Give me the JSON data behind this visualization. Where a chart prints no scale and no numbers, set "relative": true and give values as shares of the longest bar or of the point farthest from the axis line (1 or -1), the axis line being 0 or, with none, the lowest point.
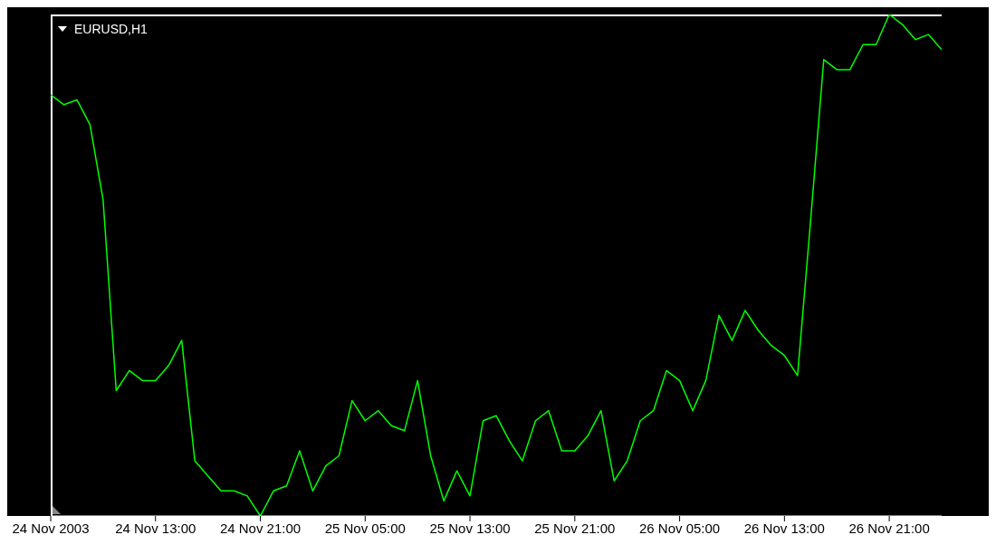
{
  "chart_data": {
    "type": "line",
    "title": "EURUSD,H1",
    "relative": true,
    "color": "#00ff00",
    "marker": "none",
    "line_style": "solid",
    "xlim": [
      "2003-11-24T05:00",
      "2003-11-27T01:00"
    ],
    "xticks": [
      {
        "value": "2003-11-24T05:00",
        "label": "24 Nov 2003"
      },
      {
        "value": "2003-11-24T13:00",
        "label": "24 Nov 13:00"
      },
      {
        "value": "2003-11-24T21:00",
        "label": "24 Nov 21:00"
      },
      {
        "value": "2003-11-25T05:00",
        "label": "25 Nov 05:00"
      },
      {
        "value": "2003-11-25T13:00",
        "label": "25 Nov 13:00"
      },
      {
        "value": "2003-11-25T21:00",
        "label": "25 Nov 21:00"
      },
      {
        "value": "2003-11-26T05:00",
        "label": "26 Nov 05:00"
      },
      {
        "value": "2003-11-26T13:00",
        "label": "26 Nov 13:00"
      },
      {
        "value": "2003-11-26T21:00",
        "label": "26 Nov 21:00"
      }
    ],
    "x": [
      "2003-11-24T05:00",
      "2003-11-24T06:00",
      "2003-11-24T07:00",
      "2003-11-24T08:00",
      "2003-11-24T09:00",
      "2003-11-24T10:00",
      "2003-11-24T11:00",
      "2003-11-24T12:00",
      "2003-11-24T13:00",
      "2003-11-24T14:00",
      "2003-11-24T15:00",
      "2003-11-24T16:00",
      "2003-11-24T17:00",
      "2003-11-24T18:00",
      "2003-11-24T19:00",
      "2003-11-24T20:00",
      "2003-11-24T21:00",
      "2003-11-24T22:00",
      "2003-11-24T23:00",
      "2003-11-25T00:00",
      "2003-11-25T01:00",
      "2003-11-25T02:00",
      "2003-11-25T03:00",
      "2003-11-25T04:00",
      "2003-11-25T05:00",
      "2003-11-25T06:00",
      "2003-11-25T07:00",
      "2003-11-25T08:00",
      "2003-11-25T09:00",
      "2003-11-25T10:00",
      "2003-11-25T11:00",
      "2003-11-25T12:00",
      "2003-11-25T13:00",
      "2003-11-25T14:00",
      "2003-11-25T15:00",
      "2003-11-25T16:00",
      "2003-11-25T17:00",
      "2003-11-25T18:00",
      "2003-11-25T19:00",
      "2003-11-25T20:00",
      "2003-11-25T21:00",
      "2003-11-25T22:00",
      "2003-11-25T23:00",
      "2003-11-26T00:00",
      "2003-11-26T01:00",
      "2003-11-26T02:00",
      "2003-11-26T03:00",
      "2003-11-26T04:00",
      "2003-11-26T05:00",
      "2003-11-26T06:00",
      "2003-11-26T07:00",
      "2003-11-26T08:00",
      "2003-11-26T09:00",
      "2003-11-26T10:00",
      "2003-11-26T11:00",
      "2003-11-26T12:00",
      "2003-11-26T13:00",
      "2003-11-26T14:00",
      "2003-11-26T15:00",
      "2003-11-26T16:00",
      "2003-11-26T17:00",
      "2003-11-26T18:00",
      "2003-11-26T19:00",
      "2003-11-26T20:00",
      "2003-11-26T21:00",
      "2003-11-26T22:00",
      "2003-11-26T23:00",
      "2003-11-27T00:00",
      "2003-11-27T01:00"
    ],
    "values": [
      0.84,
      0.82,
      0.83,
      0.78,
      0.63,
      0.25,
      0.29,
      0.27,
      0.27,
      0.3,
      0.35,
      0.11,
      0.08,
      0.05,
      0.05,
      0.04,
      0,
      0.05,
      0.06,
      0.13,
      0.05,
      0.1,
      0.12,
      0.23,
      0.19,
      0.21,
      0.18,
      0.17,
      0.27,
      0.12,
      0.03,
      0.09,
      0.04,
      0.19,
      0.2,
      0.15,
      0.11,
      0.19,
      0.21,
      0.13,
      0.13,
      0.16,
      0.21,
      0.07,
      0.11,
      0.19,
      0.21,
      0.29,
      0.27,
      0.21,
      0.27,
      0.4,
      0.35,
      0.41,
      0.37,
      0.34,
      0.32,
      0.28,
      0.59,
      0.91,
      0.89,
      0.89,
      0.94,
      0.94,
      1,
      0.98,
      0.95,
      0.96,
      0.93
    ]
  }
}
